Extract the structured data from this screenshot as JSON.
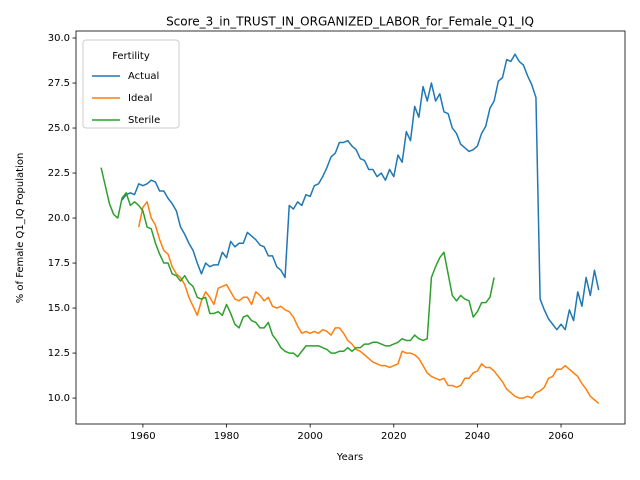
{
  "chart_data": {
    "type": "line",
    "title": "Score_3_in_TRUST_IN_ORGANIZED_LABOR_for_Female_Q1_IQ",
    "xlabel": "Years",
    "ylabel": "% of Female Q1_IQ Population",
    "legend_title": "Fertility",
    "legend": "upper left",
    "grid": false,
    "xlim": [
      1944,
      2075.3
    ],
    "ylim": [
      8.56,
      30.39
    ],
    "xticks": [
      1960,
      1980,
      2000,
      2020,
      2040,
      2060
    ],
    "yticks": [
      {
        "value": 10,
        "label": "10.0"
      },
      12.5,
      {
        "value": 15,
        "label": "15.0"
      },
      17.5,
      {
        "value": 20,
        "label": "20.0"
      },
      22.5,
      {
        "value": 25,
        "label": "25.0"
      },
      27.5,
      {
        "value": 30,
        "label": "30.0"
      }
    ],
    "series": [
      {
        "name": "Actual",
        "color": "#1f77b4",
        "x": [
          1955,
          1956,
          1957,
          1958,
          1959,
          1960,
          1961,
          1962,
          1963,
          1964,
          1965,
          1966,
          1967,
          1968,
          1969,
          1970,
          1971,
          1972,
          1973,
          1974,
          1975,
          1976,
          1977,
          1978,
          1979,
          1980,
          1981,
          1982,
          1983,
          1984,
          1985,
          1986,
          1987,
          1988,
          1989,
          1990,
          1991,
          1992,
          1993,
          1994,
          1995,
          1996,
          1997,
          1998,
          1999,
          2000,
          2001,
          2002,
          2003,
          2004,
          2005,
          2006,
          2007,
          2008,
          2009,
          2010,
          2011,
          2012,
          2013,
          2014,
          2015,
          2016,
          2017,
          2018,
          2019,
          2020,
          2021,
          2022,
          2023,
          2024,
          2025,
          2026,
          2027,
          2028,
          2029,
          2030,
          2031,
          2032,
          2033,
          2034,
          2035,
          2036,
          2037,
          2038,
          2039,
          2040,
          2041,
          2042,
          2043,
          2044,
          2045,
          2046,
          2047,
          2048,
          2049,
          2050,
          2051,
          2052,
          2053,
          2054,
          2055,
          2056,
          2057,
          2058,
          2059,
          2060,
          2061,
          2062,
          2063,
          2064,
          2065,
          2066,
          2067,
          2068,
          2069
        ],
        "values": [
          21.0,
          21.3,
          21.4,
          21.3,
          21.9,
          21.8,
          21.9,
          22.1,
          22.0,
          21.5,
          21.5,
          21.1,
          20.8,
          20.4,
          19.5,
          19.1,
          18.6,
          18.2,
          17.5,
          16.9,
          17.5,
          17.3,
          17.4,
          17.4,
          18.1,
          17.8,
          18.7,
          18.4,
          18.6,
          18.6,
          19.2,
          19.0,
          18.8,
          18.5,
          18.4,
          17.9,
          17.9,
          17.3,
          17.1,
          16.7,
          20.7,
          20.5,
          20.9,
          20.7,
          21.3,
          21.2,
          21.8,
          21.9,
          22.3,
          22.8,
          23.4,
          23.6,
          24.2,
          24.2,
          24.3,
          24.0,
          23.8,
          23.3,
          23.2,
          22.7,
          22.7,
          22.3,
          22.5,
          22.1,
          22.7,
          22.3,
          23.5,
          23.1,
          24.8,
          24.3,
          26.2,
          25.6,
          27.3,
          26.5,
          27.5,
          26.5,
          26.9,
          25.9,
          25.8,
          25.0,
          24.7,
          24.1,
          23.9,
          23.7,
          23.8,
          24.0,
          24.7,
          25.1,
          26.1,
          26.5,
          27.6,
          27.8,
          28.8,
          28.7,
          29.1,
          28.7,
          28.5,
          27.9,
          27.4,
          26.7,
          15.5,
          14.9,
          14.4,
          14.1,
          13.8,
          14.1,
          13.8,
          14.9,
          14.3,
          15.9,
          15.1,
          16.7,
          15.7,
          17.1,
          16.0
        ]
      },
      {
        "name": "Ideal",
        "color": "#ff7f0e",
        "x": [
          1959,
          1960,
          1961,
          1962,
          1963,
          1964,
          1965,
          1966,
          1967,
          1968,
          1969,
          1970,
          1971,
          1972,
          1973,
          1974,
          1975,
          1976,
          1977,
          1978,
          1979,
          1980,
          1981,
          1982,
          1983,
          1984,
          1985,
          1986,
          1987,
          1988,
          1989,
          1990,
          1991,
          1992,
          1993,
          1994,
          1995,
          1996,
          1997,
          1998,
          1999,
          2000,
          2001,
          2002,
          2003,
          2004,
          2005,
          2006,
          2007,
          2008,
          2009,
          2010,
          2011,
          2012,
          2013,
          2014,
          2015,
          2016,
          2017,
          2018,
          2019,
          2020,
          2021,
          2022,
          2023,
          2024,
          2025,
          2026,
          2027,
          2028,
          2029,
          2030,
          2031,
          2032,
          2033,
          2034,
          2035,
          2036,
          2037,
          2038,
          2039,
          2040,
          2041,
          2042,
          2043,
          2044,
          2045,
          2046,
          2047,
          2048,
          2049,
          2050,
          2051,
          2052,
          2053,
          2054,
          2055,
          2056,
          2057,
          2058,
          2059,
          2060,
          2061,
          2062,
          2063,
          2064,
          2065,
          2066,
          2067,
          2068,
          2069
        ],
        "values": [
          19.5,
          20.6,
          20.9,
          20.0,
          19.6,
          18.8,
          18.2,
          18.0,
          17.3,
          16.9,
          16.7,
          16.3,
          15.6,
          15.1,
          14.6,
          15.4,
          15.9,
          15.6,
          15.2,
          16.1,
          16.2,
          16.3,
          15.9,
          15.5,
          15.4,
          15.6,
          15.6,
          15.2,
          15.9,
          15.7,
          15.4,
          15.6,
          15.1,
          15.0,
          15.1,
          14.9,
          14.8,
          14.5,
          14.0,
          13.6,
          13.7,
          13.6,
          13.7,
          13.6,
          13.8,
          13.7,
          13.5,
          13.9,
          13.9,
          13.6,
          13.2,
          13.0,
          12.7,
          12.6,
          12.4,
          12.2,
          12.0,
          11.9,
          11.8,
          11.8,
          11.7,
          11.8,
          11.9,
          12.6,
          12.5,
          12.5,
          12.4,
          12.2,
          11.8,
          11.4,
          11.2,
          11.1,
          11.0,
          11.1,
          10.7,
          10.7,
          10.6,
          10.7,
          11.1,
          11.1,
          11.4,
          11.5,
          11.9,
          11.7,
          11.7,
          11.5,
          11.2,
          10.9,
          10.5,
          10.3,
          10.1,
          10.0,
          10.0,
          10.1,
          10.0,
          10.3,
          10.4,
          10.6,
          11.1,
          11.2,
          11.6,
          11.6,
          11.8,
          11.6,
          11.4,
          11.2,
          10.8,
          10.5,
          10.1,
          9.9,
          9.7
        ]
      },
      {
        "name": "Sterile",
        "color": "#2ca02c",
        "x": [
          1950,
          1951,
          1952,
          1953,
          1954,
          1955,
          1956,
          1957,
          1958,
          1959,
          1960,
          1961,
          1962,
          1963,
          1964,
          1965,
          1966,
          1967,
          1968,
          1969,
          1970,
          1971,
          1972,
          1973,
          1974,
          1975,
          1976,
          1977,
          1978,
          1979,
          1980,
          1981,
          1982,
          1983,
          1984,
          1985,
          1986,
          1987,
          1988,
          1989,
          1990,
          1991,
          1992,
          1993,
          1994,
          1995,
          1996,
          1997,
          1998,
          1999,
          2000,
          2001,
          2002,
          2003,
          2004,
          2005,
          2006,
          2007,
          2008,
          2009,
          2010,
          2011,
          2012,
          2013,
          2014,
          2015,
          2016,
          2017,
          2018,
          2019,
          2020,
          2021,
          2022,
          2023,
          2024,
          2025,
          2026,
          2027,
          2028,
          2029,
          2030,
          2031,
          2032,
          2033,
          2034,
          2035,
          2036,
          2037,
          2038,
          2039,
          2040,
          2041,
          2042,
          2043,
          2044
        ],
        "values": [
          22.8,
          21.8,
          20.8,
          20.2,
          20.0,
          21.1,
          21.4,
          20.7,
          20.9,
          20.7,
          20.4,
          19.5,
          19.4,
          18.6,
          18.0,
          17.5,
          17.5,
          16.9,
          16.8,
          16.5,
          16.8,
          16.4,
          16.2,
          15.6,
          15.5,
          15.6,
          14.7,
          14.7,
          14.8,
          14.6,
          15.2,
          14.7,
          14.1,
          13.9,
          14.5,
          14.6,
          14.3,
          14.2,
          13.9,
          13.9,
          14.2,
          13.5,
          13.2,
          12.8,
          12.6,
          12.5,
          12.5,
          12.3,
          12.6,
          12.9,
          12.9,
          12.9,
          12.9,
          12.8,
          12.7,
          12.5,
          12.5,
          12.6,
          12.6,
          12.8,
          12.6,
          12.8,
          12.8,
          13.0,
          13.0,
          13.1,
          13.1,
          13.0,
          12.9,
          12.9,
          13.0,
          13.1,
          13.3,
          13.2,
          13.2,
          13.5,
          13.3,
          13.2,
          13.3,
          16.7,
          17.3,
          17.8,
          18.1,
          16.9,
          15.7,
          15.4,
          15.7,
          15.5,
          15.4,
          14.5,
          14.8,
          15.3,
          15.3,
          15.6,
          16.7
        ]
      }
    ]
  }
}
